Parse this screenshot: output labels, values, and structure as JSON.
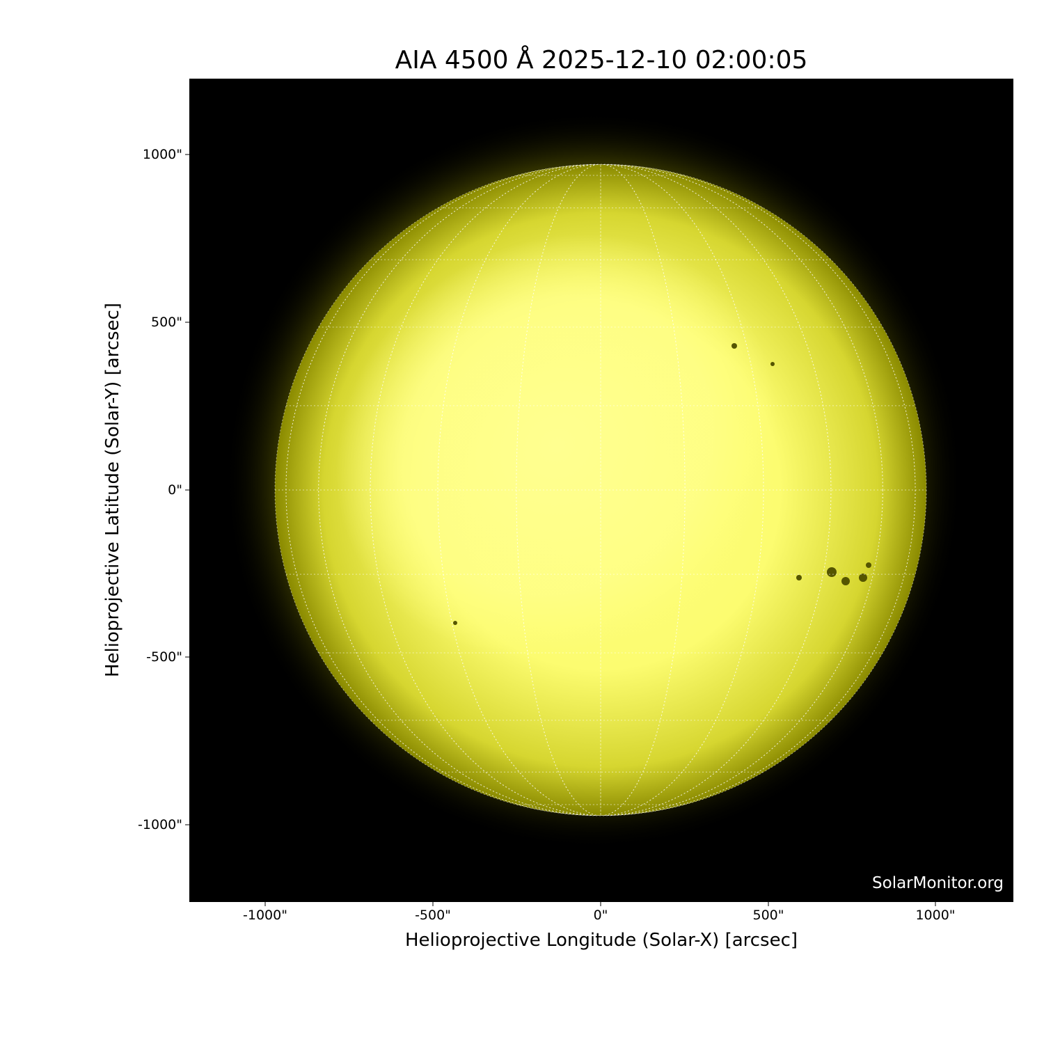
{
  "title": "AIA 4500 Å 2025-12-10 02:00:05",
  "x_axis": {
    "label": "Helioprojective Longitude (Solar-X) [arcsec]",
    "ticks": [
      "-1000\"",
      "-500\"",
      "0\"",
      "500\"",
      "1000\""
    ],
    "tick_values": [
      -1000,
      -500,
      0,
      500,
      1000
    ],
    "range": [
      -1230,
      1230
    ]
  },
  "y_axis": {
    "label": "Helioprojective Latitude (Solar-Y) [arcsec]",
    "ticks": [
      "1000\"",
      "500\"",
      "0\"",
      "-500\"",
      "-1000\""
    ],
    "tick_values": [
      1000,
      500,
      0,
      -500,
      -1000
    ],
    "range": [
      -1230,
      1230
    ]
  },
  "watermark": "SolarMonitor.org",
  "colors": {
    "disk": "#ffff80",
    "limb": "#8a8a00",
    "background": "#000000"
  },
  "grid": {
    "spacing_deg": 15,
    "style": "dotted"
  }
}
